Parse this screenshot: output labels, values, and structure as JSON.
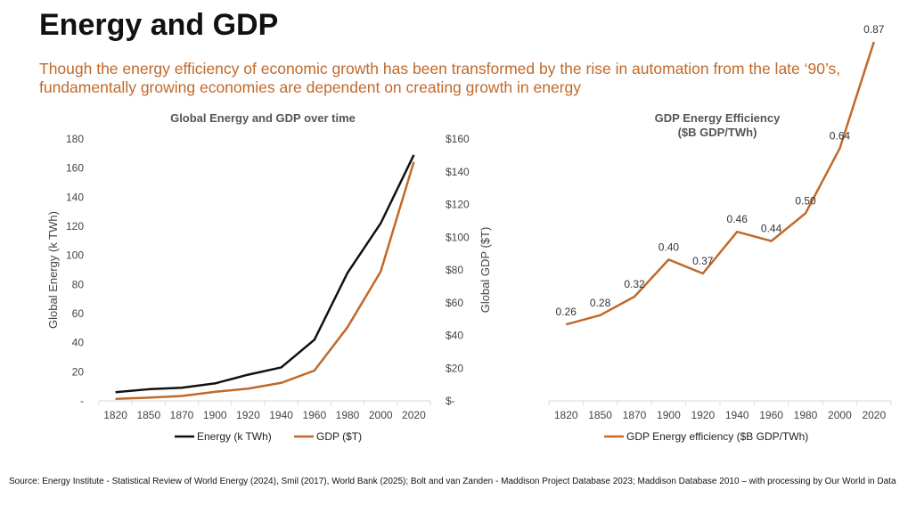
{
  "page": {
    "title": "Energy and GDP",
    "subtitle": "Though the energy efficiency of economic growth has been transformed by the rise in automation from the late ‘90’s, fundamentally growing economies are dependent on creating growth in energy",
    "source": "Source: Energy Institute - Statistical Review of World Energy (2024), Smil (2017), World Bank (2025); Bolt and van Zanden - Maddison Project Database 2023; Maddison Database 2010 – with processing by Our World in Data"
  },
  "colors": {
    "energy": "#111111",
    "gdp": "#c0692a",
    "efficiency": "#c0692a",
    "title": "#111111",
    "subtitle": "#c0692a"
  },
  "chart_data": [
    {
      "type": "line",
      "title": "Global Energy and GDP over time",
      "x": [
        "1820",
        "1850",
        "1870",
        "1900",
        "1920",
        "1940",
        "1960",
        "1980",
        "2000",
        "2020"
      ],
      "xlabel": "",
      "ylabel": "Global Energy (k TWh)",
      "y2label": "Global GDP ($T)",
      "ylim": [
        0,
        180
      ],
      "y2lim": [
        0,
        160
      ],
      "yticks": [
        "-",
        "20",
        "40",
        "60",
        "80",
        "100",
        "120",
        "140",
        "160",
        "180"
      ],
      "y2ticks": [
        "$-",
        "$20",
        "$40",
        "$60",
        "$80",
        "$100",
        "$120",
        "$140",
        "$160"
      ],
      "legend_position": "bottom",
      "series": [
        {
          "name": "Energy (k TWh)",
          "axis": "left",
          "values": [
            6,
            8,
            9,
            12,
            18,
            23,
            42,
            88,
            122,
            169
          ]
        },
        {
          "name": "GDP ($T)",
          "axis": "right",
          "values": [
            1.2,
            2,
            3,
            5.5,
            7.5,
            11,
            18.5,
            45,
            79,
            146
          ]
        }
      ],
      "grid": false
    },
    {
      "type": "line",
      "title": "GDP Energy Efficiency\n($B GDP/TWh)",
      "x": [
        "1820",
        "1850",
        "1870",
        "1900",
        "1920",
        "1940",
        "1960",
        "1980",
        "2000",
        "2020"
      ],
      "ylim": [
        0,
        1
      ],
      "legend_position": "bottom",
      "series": [
        {
          "name": "GDP Energy efficiency ($B GDP/TWh)",
          "values": [
            0.26,
            0.28,
            0.32,
            0.4,
            0.37,
            0.46,
            0.44,
            0.5,
            0.64,
            0.87
          ]
        }
      ],
      "data_labels": [
        "0.26",
        "0.28",
        "0.32",
        "0.40",
        "0.37",
        "0.46",
        "0.44",
        "0.50",
        "0.64",
        "0.87"
      ],
      "grid": false
    }
  ]
}
